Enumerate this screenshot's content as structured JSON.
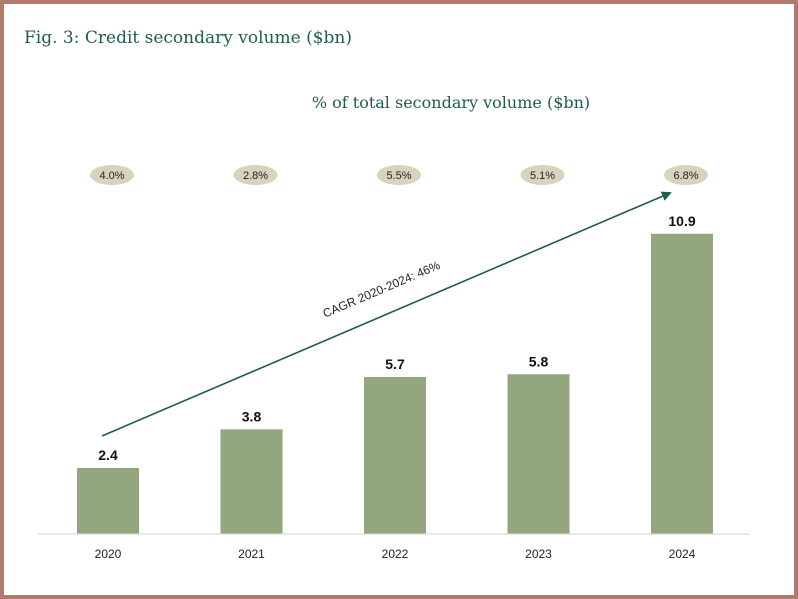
{
  "figure": {
    "title": "Fig. 3: Credit secondary volume ($bn)"
  },
  "chart_data": {
    "type": "bar",
    "title": "% of total secondary volume ($bn)",
    "categories": [
      "2020",
      "2021",
      "2022",
      "2023",
      "2024"
    ],
    "values": [
      2.4,
      3.8,
      5.7,
      5.8,
      10.9
    ],
    "value_labels": [
      "2.4",
      "3.8",
      "5.7",
      "5.8",
      "10.9"
    ],
    "pct_labels": [
      "4.0%",
      "2.8%",
      "5.5%",
      "5.1%",
      "6.8%"
    ],
    "annotation": "CAGR 2020-2024: 46%",
    "xlabel": "",
    "ylabel": "",
    "ylim": [
      0,
      11.8
    ],
    "grid": false,
    "colors": {
      "bar": "#93a67f",
      "pill": "#d9d3be",
      "arrow": "#1f5c4f",
      "title": "#1f5c4f",
      "frame": "#b07a6c"
    }
  }
}
